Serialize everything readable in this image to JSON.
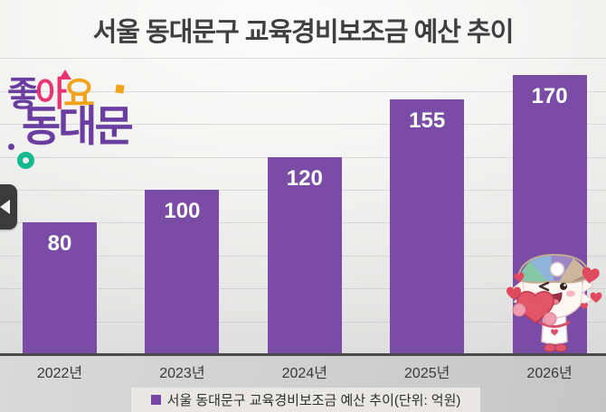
{
  "title": "서울 동대문구 교육경비보조금 예산 추이",
  "logo": {
    "c1": "좋",
    "c2": "아",
    "c3": "요",
    "line2": "동대문",
    "colors": {
      "purple": "#6a3ea1",
      "pink": "#e73572",
      "yellow": "#f0a31b",
      "green": "#12b98d"
    }
  },
  "icons": {
    "back_button": "left-triangle-arrow",
    "mascot": "dongdaemun-mascot-holding-heart"
  },
  "chart_data": {
    "type": "bar",
    "title": "서울 동대문구 교육경비보조금 예산 추이",
    "categories": [
      "2022년",
      "2023년",
      "2024년",
      "2025년",
      "2026년"
    ],
    "values": [
      80,
      100,
      120,
      155,
      170
    ],
    "unit_label": "단위: 억원",
    "legend": "서울 동대문구 교육경비보조금 예산 추이(단위: 억원)",
    "legend_position": "bottom",
    "bar_color": "#7b4ca5",
    "value_label_color": "#ffffff",
    "ylim": [
      0,
      190
    ],
    "grid": "on",
    "grid_step": 20,
    "grid_max": 180,
    "xlabel": "",
    "ylabel": ""
  },
  "legend": {
    "label": "서울 동대문구 교육경비보조금 예산 추이(단위: 억원)",
    "marker_color": "#7445a5"
  }
}
